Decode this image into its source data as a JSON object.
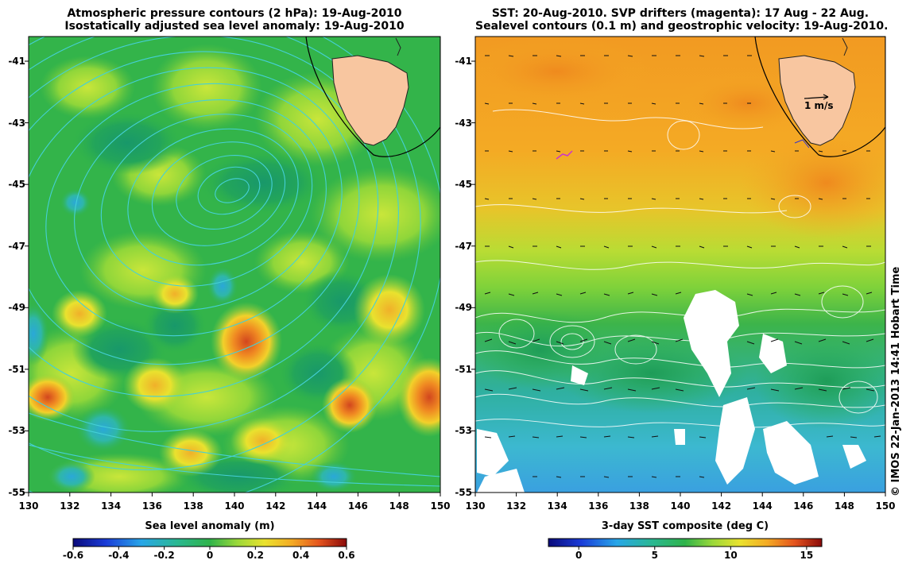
{
  "left_panel": {
    "title_line1": "Atmospheric pressure contours (2 hPa): 19-Aug-2010",
    "title_line2": "Isostatically adjusted sea level anomaly: 19-Aug-2010",
    "colorbar_label": "Sea level anomaly (m)",
    "colorbar_ticks": [
      "-0.6",
      "-0.4",
      "-0.2",
      "0",
      "0.2",
      "0.4",
      "0.6"
    ],
    "colorbar_range": [
      -0.6,
      0.6
    ],
    "colors": {
      "water_base": "#2fb34a",
      "land": "#f8c6a0",
      "contour": "#43d0d8"
    }
  },
  "right_panel": {
    "title_line1": "SST: 20-Aug-2010. SVP drifters (magenta): 17 Aug - 22 Aug.",
    "title_line2": "Sealevel contours (0.1 m) and geostrophic velocity: 19-Aug-2010.",
    "colorbar_label": "3-day SST composite (deg C)",
    "colorbar_ticks": [
      "0",
      "5",
      "10",
      "15"
    ],
    "colorbar_range": [
      -2,
      16
    ],
    "velocity_scale_label": "1 m/s",
    "colors": {
      "warm": "#f4a322",
      "cool": "#2fb34a",
      "cold": "#3cb4d8",
      "land": "#f8c6a0",
      "contour": "#ffffff",
      "drifter": "#cc33cc"
    }
  },
  "x_ticks": [
    "130",
    "132",
    "134",
    "136",
    "138",
    "140",
    "142",
    "144",
    "146",
    "148",
    "150"
  ],
  "y_ticks": [
    "-41",
    "-43",
    "-45",
    "-47",
    "-49",
    "-51",
    "-53",
    "-55"
  ],
  "x_range": [
    130,
    150
  ],
  "y_range": [
    -55,
    -40.2
  ],
  "copyright": "© IMOS 22-Jan-2013 14:41 Hobart Time"
}
